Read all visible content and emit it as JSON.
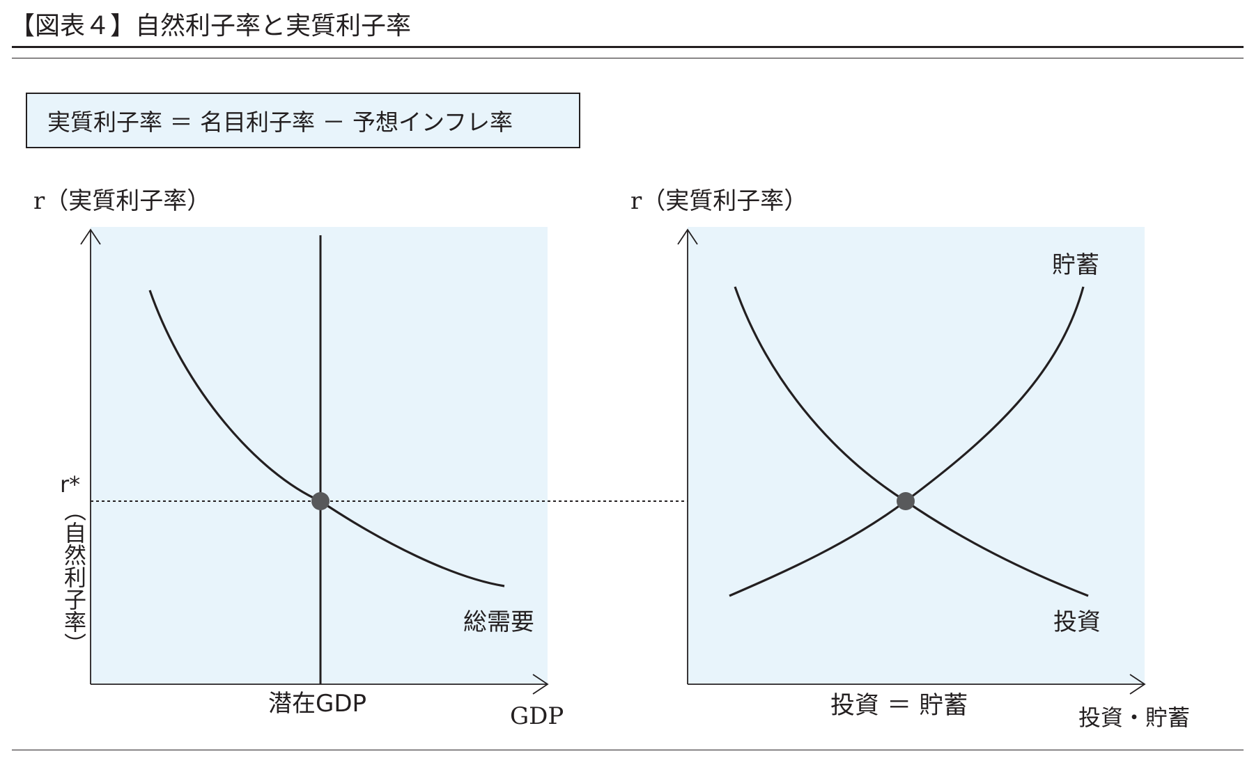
{
  "title": "【図表４】自然利子率と実質利子率",
  "formula": "実質利子率 ＝ 名目利子率 － 予想インフレ率",
  "left_panel": {
    "y_axis_label": "r（実質利子率）",
    "r_star_label": "r*",
    "natural_rate_label": "（自然利子率）",
    "curve_label": "総需要",
    "vertical_line_label": "潜在GDP",
    "x_axis_label": "GDP"
  },
  "right_panel": {
    "y_axis_label": "r（実質利子率）",
    "saving_curve_label": "貯蓄",
    "investment_curve_label": "投資",
    "equilibrium_label": "投資 ＝ 貯蓄",
    "x_axis_label": "投資・貯蓄"
  },
  "colors": {
    "panel_background": "#e8f4fb",
    "line": "#231f20",
    "equilibrium_point": "#58595b"
  }
}
